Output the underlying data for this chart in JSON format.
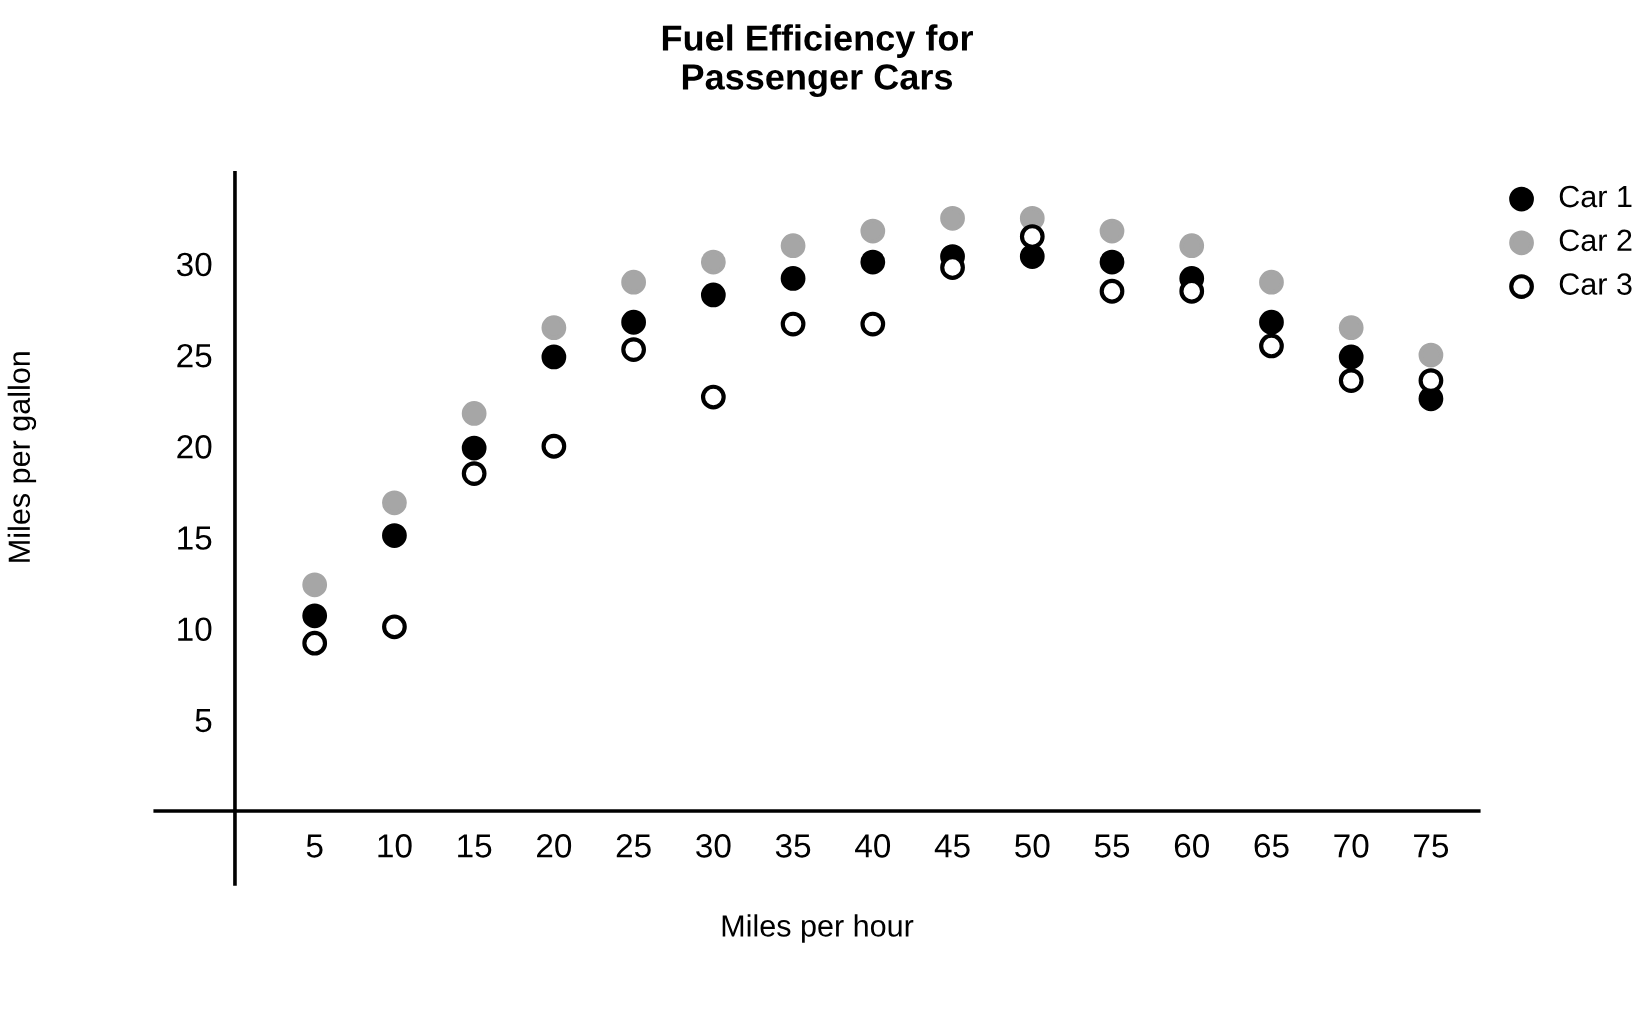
{
  "chart_data": {
    "type": "scatter",
    "title": "Fuel Efficiency for\nPassenger Cars",
    "xlabel": "Miles per hour",
    "ylabel": "Miles per gallon",
    "x": [
      5,
      10,
      15,
      20,
      25,
      30,
      35,
      40,
      45,
      50,
      55,
      60,
      65,
      70,
      75
    ],
    "series": [
      {
        "name": "Car 1",
        "color": "#000000",
        "values": [
          10.7,
          15.1,
          19.9,
          24.9,
          26.8,
          28.3,
          29.2,
          30.1,
          30.4,
          30.4,
          30.1,
          29.2,
          26.8,
          24.9,
          22.6
        ]
      },
      {
        "name": "Car 2",
        "color": "#a6a6a6",
        "values": [
          12.4,
          16.9,
          21.8,
          26.5,
          29.0,
          30.1,
          31.0,
          31.8,
          32.5,
          32.5,
          31.8,
          31.0,
          29.0,
          26.5,
          25.0
        ]
      },
      {
        "name": "Car 3",
        "color": "#ffffff",
        "values": [
          9.2,
          10.1,
          18.5,
          20.0,
          25.3,
          22.7,
          26.7,
          26.7,
          29.8,
          31.5,
          28.5,
          28.5,
          25.5,
          23.6,
          23.6
        ]
      }
    ],
    "xlim": [
      -5,
      78
    ],
    "ylim": [
      -4,
      35
    ],
    "xticks": [
      5,
      10,
      15,
      20,
      25,
      30,
      35,
      40,
      45,
      50,
      55,
      60,
      65,
      70,
      75
    ],
    "yticks": [
      5,
      10,
      15,
      20,
      25,
      30
    ],
    "marker": "circle",
    "grid": false,
    "legend": "top right"
  }
}
